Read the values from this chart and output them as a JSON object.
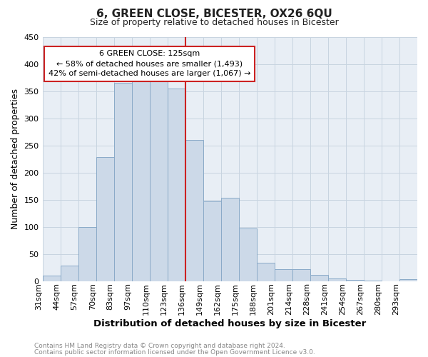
{
  "title": "6, GREEN CLOSE, BICESTER, OX26 6QU",
  "subtitle": "Size of property relative to detached houses in Bicester",
  "xlabel": "Distribution of detached houses by size in Bicester",
  "ylabel": "Number of detached properties",
  "bar_labels": [
    "31sqm",
    "44sqm",
    "57sqm",
    "70sqm",
    "83sqm",
    "97sqm",
    "110sqm",
    "123sqm",
    "136sqm",
    "149sqm",
    "162sqm",
    "175sqm",
    "188sqm",
    "201sqm",
    "214sqm",
    "228sqm",
    "241sqm",
    "254sqm",
    "267sqm",
    "280sqm",
    "293sqm"
  ],
  "bar_heights": [
    10,
    28,
    100,
    228,
    365,
    370,
    375,
    355,
    260,
    147,
    153,
    97,
    33,
    22,
    22,
    11,
    5,
    2,
    1,
    0,
    3
  ],
  "bar_color": "#ccd9e8",
  "bar_edge_color": "#8aaac8",
  "highlight_bar_index": 7,
  "vline_color": "#cc2222",
  "ylim": [
    0,
    450
  ],
  "yticks": [
    0,
    50,
    100,
    150,
    200,
    250,
    300,
    350,
    400,
    450
  ],
  "annotation_text_line1": "6 GREEN CLOSE: 125sqm",
  "annotation_text_line2": "← 58% of detached houses are smaller (1,493)",
  "annotation_text_line3": "42% of semi-detached houses are larger (1,067) →",
  "annotation_box_edge": "#cc2222",
  "footer1": "Contains HM Land Registry data © Crown copyright and database right 2024.",
  "footer2": "Contains public sector information licensed under the Open Government Licence v3.0.",
  "bg_color": "#ffffff",
  "plot_bg_color": "#e8eef5",
  "grid_color": "#c8d4e0",
  "title_fontsize": 11,
  "subtitle_fontsize": 9,
  "tick_fontsize": 8,
  "ylabel_fontsize": 9,
  "xlabel_fontsize": 9.5
}
